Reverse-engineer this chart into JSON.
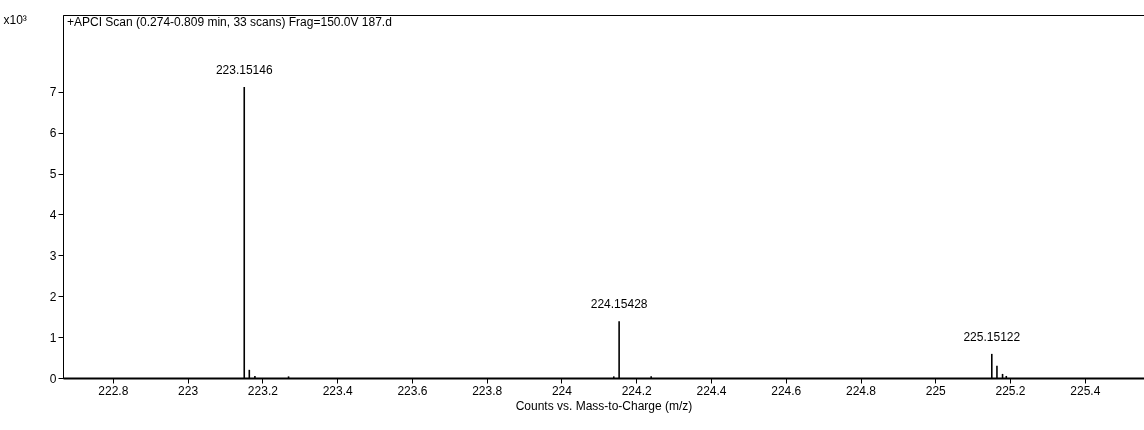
{
  "chart_data": {
    "type": "bar",
    "title": "+APCI Scan (0.274-0.809 min, 33 scans) Frag=150.0V 187.d",
    "xlabel": "Counts vs. Mass-to-Charge (m/z)",
    "ylabel": "x10³",
    "x": [
      223.15146,
      223.165,
      223.18,
      223.27,
      224.14,
      224.15428,
      224.24,
      225.15122,
      225.165,
      225.18,
      225.19
    ],
    "values": [
      7.12,
      0.2,
      0.05,
      0.04,
      0.04,
      1.39,
      0.04,
      0.59,
      0.3,
      0.1,
      0.05
    ],
    "color": "#000000",
    "annotations": [
      {
        "text": "223.15146",
        "x": 223.15146,
        "y": 7.12
      },
      {
        "text": "224.15428",
        "x": 224.15428,
        "y": 1.39
      },
      {
        "text": "225.15122",
        "x": 225.15122,
        "y": 0.59
      }
    ],
    "xlim": [
      222.68,
      225.545
    ],
    "xticks": [
      222.8,
      223,
      223.2,
      223.4,
      223.6,
      223.8,
      224,
      224.2,
      224.4,
      224.6,
      224.8,
      225,
      225.2,
      225.4
    ],
    "ylim": [
      0,
      8.88
    ],
    "yticks": [
      0,
      1,
      2,
      3,
      4,
      5,
      6,
      7
    ],
    "grid": false
  }
}
